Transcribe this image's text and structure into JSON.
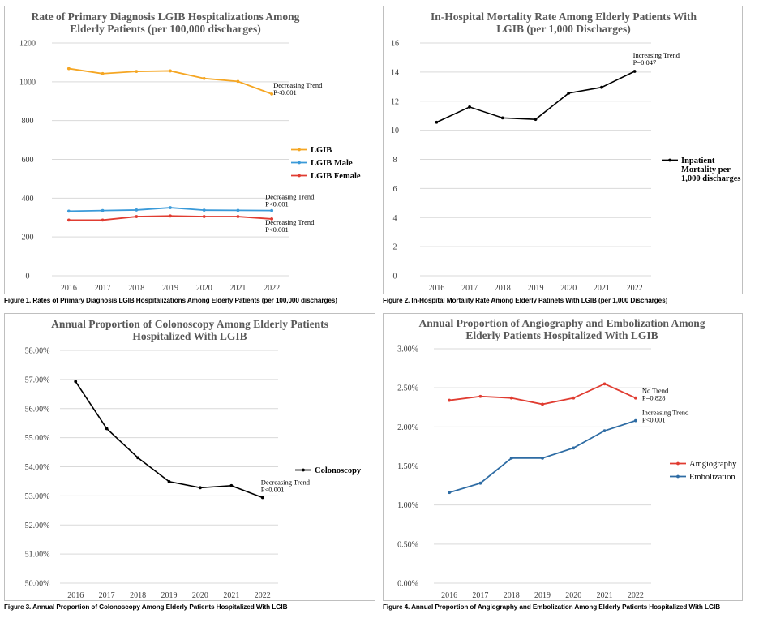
{
  "chart_data": [
    {
      "type": "line",
      "title": "Rate of Primary Diagnosis LGIB Hospitalizations Among Elderly Patients (per 100,000 discharges)",
      "title_lines": [
        "Rate of Primary Diagnosis LGIB Hospitalizations Among",
        "Elderly Patients (per 100,000 discharges)"
      ],
      "categories": [
        "2016",
        "2017",
        "2018",
        "2019",
        "2020",
        "2021",
        "2022"
      ],
      "ylim": [
        0,
        1200
      ],
      "yticks": [
        "0",
        "200",
        "400",
        "600",
        "800",
        "1000",
        "1200"
      ],
      "grid": true,
      "legend": "right",
      "series": [
        {
          "name": "LGIB",
          "color": "#f5a623",
          "values": [
            1068,
            1042,
            1053,
            1056,
            1017,
            1002,
            937
          ],
          "bold": true
        },
        {
          "name": "LGIB Male",
          "color": "#3a9ad9",
          "values": [
            333,
            336,
            339,
            351,
            338,
            337,
            336
          ],
          "bold": true
        },
        {
          "name": "LGIB Female",
          "color": "#e03c31",
          "values": [
            287,
            287,
            305,
            308,
            305,
            305,
            293
          ],
          "bold": true
        }
      ],
      "annotations": [
        {
          "lines": [
            "Decreasing Trend",
            "P<0.001"
          ],
          "series": 0
        },
        {
          "lines": [
            "Decreasing Trend",
            "P<0.001"
          ],
          "series": 1
        },
        {
          "lines": [
            "Decreasing Trend",
            "P<0.001"
          ],
          "series": 2
        }
      ],
      "caption": "Figure 1. Rates of Primary Diagnosis LGIB Hospitalizations Among Elderly Patients (per 100,000 discharges)"
    },
    {
      "type": "line",
      "title": "In-Hospital Mortality Rate Among Elderly Patients With LGIB (per 1,000 Discharges)",
      "title_lines": [
        "In-Hospital Mortality Rate Among Elderly Patients With",
        "LGIB (per 1,000 Discharges)"
      ],
      "categories": [
        "2016",
        "2017",
        "2018",
        "2019",
        "2020",
        "2021",
        "2022"
      ],
      "ylim": [
        0,
        16
      ],
      "yticks": [
        "0",
        "2",
        "4",
        "6",
        "8",
        "10",
        "12",
        "14",
        "16"
      ],
      "grid": true,
      "legend": "right",
      "series": [
        {
          "name": "Inpatient Mortality per 1,000 discharges",
          "name_lines": [
            "Inpatient",
            "Mortality per",
            "1,000 discharges"
          ],
          "color": "#000000",
          "values": [
            10.55,
            11.6,
            10.85,
            10.75,
            12.55,
            12.95,
            14.05
          ],
          "bold": true
        }
      ],
      "annotations": [
        {
          "lines": [
            "Increasing Trend",
            "P=0.047"
          ],
          "series": 0
        }
      ],
      "caption": "Figure 2. In-Hospital Mortality Rate Among Elderly Patinets With LGIB (per 1,000 Discharges)"
    },
    {
      "type": "line",
      "title": "Annual Proportion of Colonoscopy Among Elderly Patients Hospitalized With LGIB",
      "title_lines": [
        "Annual Proportion of Colonoscopy Among Elderly Patients",
        "Hospitalized With LGIB"
      ],
      "categories": [
        "2016",
        "2017",
        "2018",
        "2019",
        "2020",
        "2021",
        "2022"
      ],
      "ylim": [
        50,
        58
      ],
      "yticks": [
        "50.00%",
        "51.00%",
        "52.00%",
        "53.00%",
        "54.00%",
        "55.00%",
        "56.00%",
        "57.00%",
        "58.00%"
      ],
      "grid": true,
      "legend": "right",
      "series": [
        {
          "name": "Colonoscopy",
          "color": "#000000",
          "values": [
            56.93,
            55.31,
            54.31,
            53.49,
            53.28,
            53.35,
            52.94
          ],
          "bold": true
        }
      ],
      "annotations": [
        {
          "lines": [
            "Decreasing Trend",
            "P<0.001"
          ],
          "series": 0
        }
      ],
      "caption": "Figure 3. Annual Proportion of Colonoscopy Among Elderly Patients Hospitalized With LGIB"
    },
    {
      "type": "line",
      "title": "Annual Proportion of Angiography and Embolization Among Elderly Patients Hospitalized With LGIB",
      "title_lines": [
        "Annual Proportion of Angiography and Embolization Among",
        "Elderly Patients Hospitalized With LGIB"
      ],
      "categories": [
        "2016",
        "2017",
        "2018",
        "2019",
        "2020",
        "2021",
        "2022"
      ],
      "ylim": [
        0,
        3
      ],
      "yticks": [
        "0.00%",
        "0.50%",
        "1.00%",
        "1.50%",
        "2.00%",
        "2.50%",
        "3.00%"
      ],
      "grid": true,
      "legend": "right",
      "series": [
        {
          "name": "Amgiography",
          "color": "#e03c31",
          "values": [
            2.34,
            2.39,
            2.37,
            2.29,
            2.37,
            2.55,
            2.37
          ],
          "bold": false
        },
        {
          "name": "Embolization",
          "color": "#2e6ca4",
          "values": [
            1.16,
            1.28,
            1.6,
            1.6,
            1.73,
            1.95,
            2.08
          ],
          "bold": false
        }
      ],
      "annotations": [
        {
          "lines": [
            "No Trend",
            "P=0.828"
          ],
          "series": 0
        },
        {
          "lines": [
            "Increasing Trend",
            "P<0.001"
          ],
          "series": 1
        }
      ],
      "caption": "Figure 4. Annual Proportion of Angiography and Embolization Among Elderly Patients Hospitalized With LGIB"
    }
  ]
}
